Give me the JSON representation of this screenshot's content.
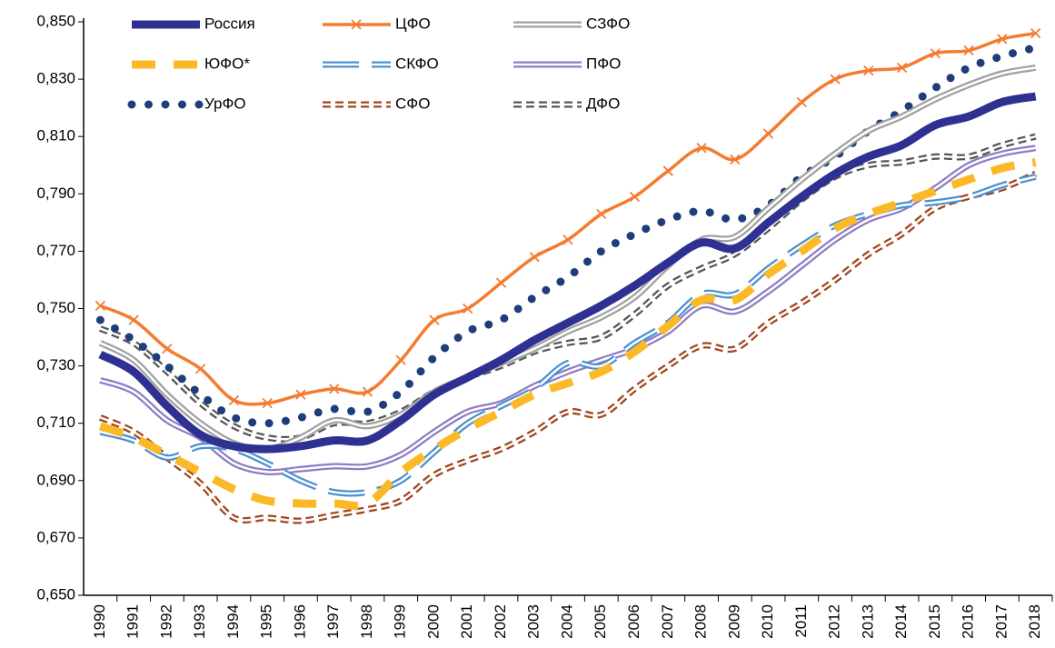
{
  "chart_data": {
    "type": "line",
    "categories": [
      "1990",
      "1991",
      "1992",
      "1993",
      "1994",
      "1995",
      "1996",
      "1997",
      "1998",
      "1999",
      "2000",
      "2001",
      "2002",
      "2003",
      "2004",
      "2005",
      "2006",
      "2007",
      "2008",
      "2009",
      "2010",
      "2011",
      "2012",
      "2013",
      "2014",
      "2015",
      "2016",
      "2017",
      "2018"
    ],
    "ylim": [
      0.65,
      0.85
    ],
    "yticks": [
      {
        "value": 0.65,
        "label": "0,650"
      },
      {
        "value": 0.67,
        "label": "0,670"
      },
      {
        "value": 0.69,
        "label": "0,690"
      },
      {
        "value": 0.71,
        "label": "0,710"
      },
      {
        "value": 0.73,
        "label": "0,730"
      },
      {
        "value": 0.75,
        "label": "0,750"
      },
      {
        "value": 0.77,
        "label": "0,770"
      },
      {
        "value": 0.79,
        "label": "0,790"
      },
      {
        "value": 0.81,
        "label": "0,810"
      },
      {
        "value": 0.83,
        "label": "0,830"
      },
      {
        "value": 0.85,
        "label": "0,850"
      }
    ],
    "grid": false,
    "legend": "top-left",
    "series": [
      {
        "name": "Россия",
        "color": "#2e3192",
        "style": "solid",
        "values": [
          0.734,
          0.728,
          0.716,
          0.706,
          0.702,
          0.701,
          0.702,
          0.704,
          0.704,
          0.711,
          0.72,
          0.726,
          0.732,
          0.739,
          0.745,
          0.751,
          0.758,
          0.766,
          0.773,
          0.771,
          0.78,
          0.789,
          0.797,
          0.803,
          0.807,
          0.814,
          0.817,
          0.822,
          0.824
        ]
      },
      {
        "name": "ЦФО",
        "color": "#f47b30",
        "style": "x-marker",
        "values": [
          0.751,
          0.746,
          0.736,
          0.729,
          0.718,
          0.717,
          0.72,
          0.722,
          0.721,
          0.732,
          0.746,
          0.75,
          0.759,
          0.768,
          0.774,
          0.783,
          0.789,
          0.798,
          0.806,
          0.802,
          0.811,
          0.822,
          0.83,
          0.833,
          0.834,
          0.839,
          0.84,
          0.844,
          0.846
        ]
      },
      {
        "name": "СЗФО",
        "color": "#a0a0a0",
        "style": "double",
        "values": [
          0.738,
          0.732,
          0.72,
          0.71,
          0.703,
          0.701,
          0.705,
          0.711,
          0.709,
          0.713,
          0.721,
          0.726,
          0.731,
          0.736,
          0.742,
          0.747,
          0.754,
          0.765,
          0.774,
          0.775,
          0.785,
          0.795,
          0.804,
          0.812,
          0.817,
          0.823,
          0.828,
          0.832,
          0.834
        ]
      },
      {
        "name": "ЮФО*",
        "color": "#fbb928",
        "style": "dashed",
        "values": [
          0.709,
          0.705,
          0.699,
          0.693,
          0.687,
          0.683,
          0.682,
          0.682,
          0.682,
          0.693,
          0.701,
          0.708,
          0.714,
          0.72,
          0.724,
          0.728,
          0.735,
          0.744,
          0.753,
          0.753,
          0.762,
          0.77,
          0.778,
          0.783,
          0.787,
          0.791,
          0.795,
          0.799,
          0.801
        ]
      },
      {
        "name": "СКФО",
        "color": "#4a90d0",
        "style": "double-dashed",
        "values": [
          0.707,
          0.704,
          0.698,
          0.702,
          0.701,
          0.696,
          0.69,
          0.686,
          0.686,
          0.69,
          0.7,
          0.71,
          0.716,
          0.722,
          0.731,
          0.73,
          0.738,
          0.745,
          0.755,
          0.755,
          0.764,
          0.772,
          0.779,
          0.783,
          0.786,
          0.787,
          0.789,
          0.793,
          0.796
        ]
      },
      {
        "name": "ПФО",
        "color": "#8e7cc3",
        "style": "double",
        "values": [
          0.725,
          0.721,
          0.711,
          0.705,
          0.696,
          0.693,
          0.694,
          0.695,
          0.695,
          0.699,
          0.707,
          0.714,
          0.717,
          0.723,
          0.728,
          0.732,
          0.736,
          0.742,
          0.751,
          0.749,
          0.756,
          0.765,
          0.774,
          0.781,
          0.785,
          0.792,
          0.8,
          0.804,
          0.806
        ]
      },
      {
        "name": "УрФО",
        "color": "#1f3d7a",
        "style": "dotted",
        "values": [
          0.746,
          0.739,
          0.73,
          0.72,
          0.712,
          0.71,
          0.712,
          0.715,
          0.714,
          0.721,
          0.733,
          0.742,
          0.746,
          0.754,
          0.761,
          0.77,
          0.776,
          0.781,
          0.784,
          0.781,
          0.786,
          0.796,
          0.803,
          0.812,
          0.819,
          0.827,
          0.834,
          0.838,
          0.841
        ]
      },
      {
        "name": "СФО",
        "color": "#a0451c",
        "style": "double-short",
        "values": [
          0.712,
          0.707,
          0.698,
          0.689,
          0.677,
          0.677,
          0.676,
          0.678,
          0.68,
          0.683,
          0.692,
          0.697,
          0.701,
          0.707,
          0.714,
          0.713,
          0.722,
          0.73,
          0.737,
          0.736,
          0.745,
          0.752,
          0.76,
          0.769,
          0.776,
          0.785,
          0.789,
          0.792,
          0.797
        ]
      },
      {
        "name": "ДФО",
        "color": "#555555",
        "style": "double-short",
        "values": [
          0.743,
          0.738,
          0.728,
          0.717,
          0.709,
          0.705,
          0.705,
          0.71,
          0.71,
          0.714,
          0.721,
          0.726,
          0.73,
          0.735,
          0.738,
          0.74,
          0.748,
          0.758,
          0.764,
          0.769,
          0.778,
          0.788,
          0.796,
          0.8,
          0.801,
          0.803,
          0.803,
          0.807,
          0.81
        ]
      }
    ]
  }
}
